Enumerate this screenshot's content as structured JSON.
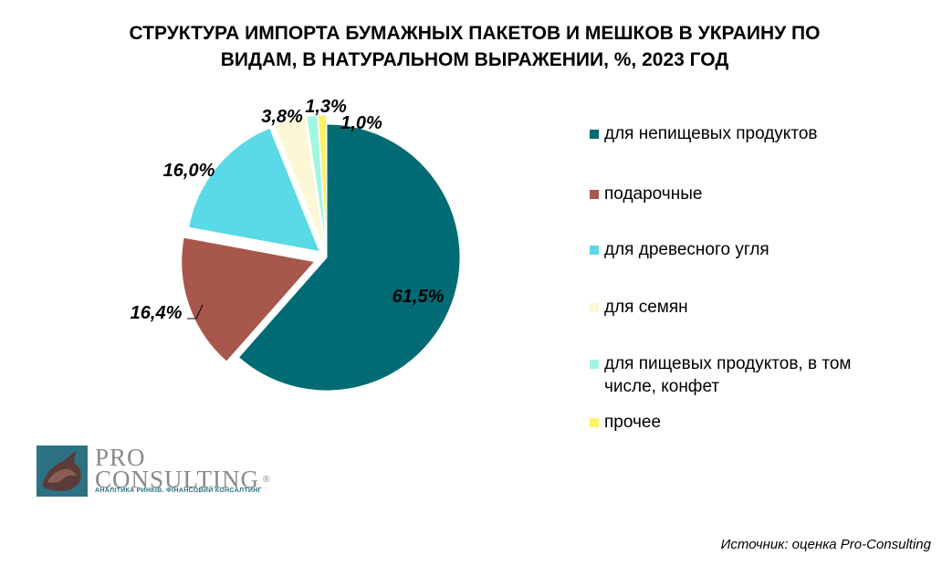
{
  "title": {
    "line1": "СТРУКТУРА ИМПОРТА БУМАЖНЫХ ПАКЕТОВ И МЕШКОВ В УКРАИНУ ПО",
    "line2": "ВИДАМ, В НАТУРАЛЬНОМ ВЫРАЖЕНИИ, %, 2023 ГОД"
  },
  "chart_data": {
    "type": "pie",
    "title": "СТРУКТУРА ИМПОРТА БУМАЖНЫХ ПАКЕТОВ И МЕШКОВ В УКРАИНУ ПО ВИДАМ, В НАТУРАЛЬНОМ ВЫРАЖЕНИИ, %, 2023 ГОД",
    "unit": "%",
    "slices": [
      {
        "name": "для непищевых продуктов",
        "value": 61.5,
        "label": "61,5%",
        "color": "#006b73"
      },
      {
        "name": "подарочные",
        "value": 16.4,
        "label": "16,4%",
        "color": "#a8574c"
      },
      {
        "name": "для древесного угля",
        "value": 16.0,
        "label": "16,0%",
        "color": "#5ad9e6"
      },
      {
        "name": "для семян",
        "value": 3.8,
        "label": "3,8%",
        "color": "#fcf8d6"
      },
      {
        "name": "для пищевых продуктов, в том числе, конфет",
        "value": 1.3,
        "label": "1,3%",
        "color": "#9ff7df"
      },
      {
        "name": "прочее",
        "value": 1.0,
        "label": "1,0%",
        "color": "#fdf166"
      }
    ],
    "legend_position": "right"
  },
  "legend": [
    {
      "label": "для непищевых продуктов",
      "color": "#006b73"
    },
    {
      "label": "подарочные",
      "color": "#a8574c"
    },
    {
      "label": "для древесного угля",
      "color": "#5ad9e6"
    },
    {
      "label": "для семян",
      "color": "#fcf8d6"
    },
    {
      "label": "для пищевых продуктов, в том числе, конфет",
      "color": "#9ff7df"
    },
    {
      "label": "прочее",
      "color": "#fdf166"
    }
  ],
  "logo": {
    "pro": "PRO",
    "consulting": "CONSULTING",
    "registered": "®",
    "tagline": "АНАЛІТИКА РИНКІВ. ФІНАНСОВИЙ КОНСАЛТИНГ",
    "emblem_color": "#2d7283"
  },
  "source": "Источник: оценка Pro-Consulting"
}
